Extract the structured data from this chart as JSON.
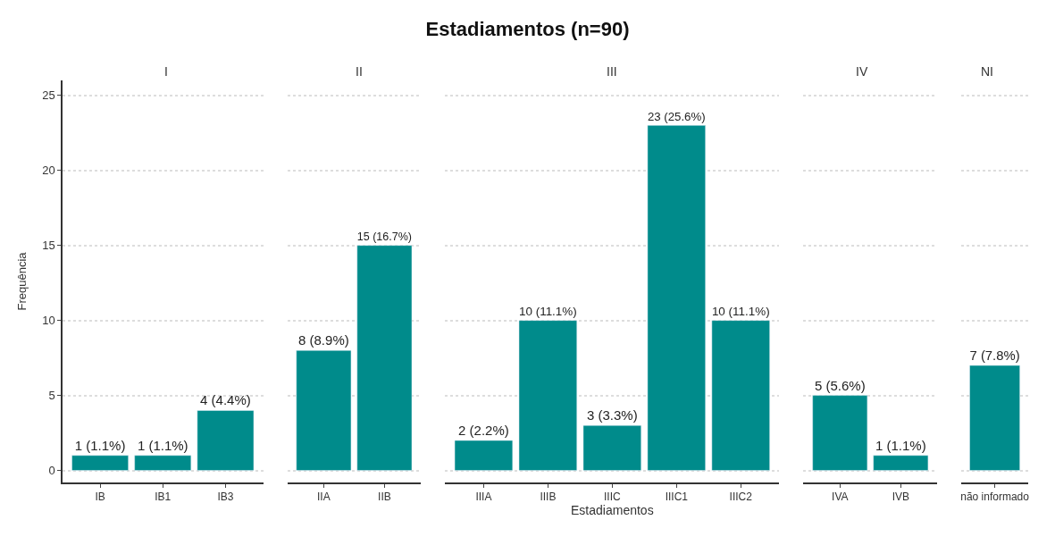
{
  "chart_data": [
    {
      "type": "bar",
      "subtitle": "I",
      "ylabel": "Frequência",
      "categories": [
        "IB",
        "IB1",
        "IB3"
      ],
      "values": [
        1,
        1,
        4
      ],
      "value_labels": [
        "1 (1.1%)",
        "1 (1.1%)",
        "4 (4.4%)"
      ],
      "color": "#008b8b",
      "ylim": [
        -0.8,
        26
      ],
      "yticks": [
        0,
        5,
        10,
        15,
        20,
        25
      ],
      "grid": "y"
    },
    {
      "type": "bar",
      "subtitle": "II",
      "categories": [
        "IIA",
        "IIB"
      ],
      "values": [
        8,
        15
      ],
      "value_labels": [
        "8 (8.9%)",
        "15 (16.7%)"
      ],
      "color": "#008b8b",
      "ylim": [
        -0.8,
        25
      ],
      "yticks": [
        0,
        5,
        10,
        15,
        20,
        25
      ],
      "grid": "y",
      "tick_labels": "x"
    },
    {
      "type": "bar",
      "title": "Estadiamentos (n=90)",
      "subtitle": "III",
      "xlabel": "Estadiamentos",
      "categories": [
        "IIIA",
        "IIIB",
        "IIIC",
        "IIIC1",
        "IIIC2"
      ],
      "values": [
        2,
        10,
        3,
        23,
        10
      ],
      "value_labels": [
        "2 (2.2%)",
        "10 (11.1%)",
        "3 (3.3%)",
        "23 (25.6%)",
        "10 (11.1%)"
      ],
      "color": "#008b8b",
      "ylim": [
        -0.8,
        25
      ],
      "yticks": [
        0,
        5,
        10,
        15,
        20,
        25
      ],
      "grid": "y",
      "tick_labels": "x"
    },
    {
      "type": "bar",
      "subtitle": "IV",
      "categories": [
        "IVA",
        "IVB"
      ],
      "values": [
        5,
        1
      ],
      "value_labels": [
        "5 (5.6%)",
        "1 (1.1%)"
      ],
      "color": "#008b8b",
      "ylim": [
        -0.8,
        25
      ],
      "yticks": [
        0,
        5,
        10,
        15,
        20,
        25
      ],
      "grid": "y",
      "tick_labels": "x"
    },
    {
      "type": "bar",
      "subtitle": "NI",
      "categories": [
        "não informado"
      ],
      "values": [
        7
      ],
      "value_labels": [
        "7 (7.8%)"
      ],
      "color": "#008b8b",
      "ylim": [
        -0.8,
        25
      ],
      "yticks": [
        0,
        5,
        10,
        15,
        20,
        25
      ],
      "grid": "y",
      "tick_labels": "x"
    }
  ]
}
